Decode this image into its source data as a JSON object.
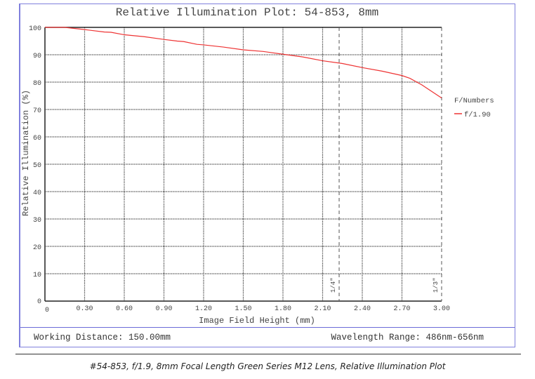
{
  "chart_data": {
    "type": "line",
    "title": "Relative Illumination Plot: 54-853, 8mm",
    "xlabel": "Image Field Height (mm)",
    "ylabel": "Relative Illumination (%)",
    "xlim": [
      0,
      3.0
    ],
    "ylim": [
      0,
      100
    ],
    "xticks": [
      "0.30",
      "0.60",
      "0.90",
      "1.20",
      "1.50",
      "1.80",
      "2.10",
      "2.40",
      "2.70",
      "3.00"
    ],
    "yticks": [
      "0",
      "10",
      "20",
      "30",
      "40",
      "50",
      "60",
      "70",
      "80",
      "90",
      "100"
    ],
    "x_origin_label": "0",
    "grid": true,
    "legend": {
      "title": "F/Numbers",
      "placement": "right"
    },
    "series": [
      {
        "name": "f/1.90",
        "color": "#ee3333",
        "x": [
          0,
          0.15,
          0.3,
          0.45,
          0.5,
          0.6,
          0.75,
          0.9,
          1.0,
          1.05,
          1.15,
          1.2,
          1.35,
          1.5,
          1.65,
          1.8,
          1.95,
          2.1,
          2.25,
          2.4,
          2.55,
          2.7,
          2.76,
          2.85,
          3.0
        ],
        "y": [
          100,
          100,
          99.2,
          98.3,
          98.2,
          97.3,
          96.6,
          95.6,
          95.0,
          94.8,
          93.8,
          93.6,
          92.8,
          91.8,
          91.2,
          90.2,
          89.2,
          87.8,
          86.8,
          85.3,
          84.0,
          82.4,
          81.4,
          79.0,
          74.2
        ]
      }
    ],
    "markers": [
      {
        "label": "1/4\"",
        "x": 2.225
      },
      {
        "label": "1/3\"",
        "x": 3.0
      }
    ]
  },
  "info": {
    "working_distance": "Working Distance: 150.00mm",
    "wavelength_range": "Wavelength Range: 486nm-656nm"
  },
  "caption": "#54-853, f/1.9, 8mm Focal Length Green Series M12 Lens, Relative Illumination Plot"
}
